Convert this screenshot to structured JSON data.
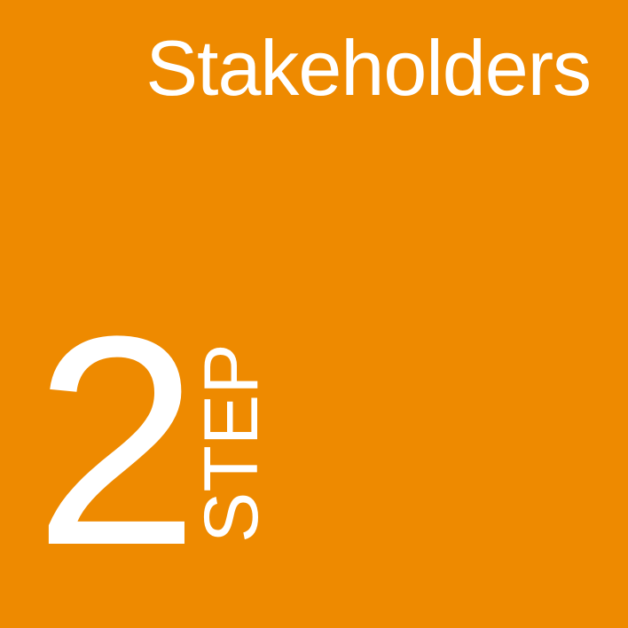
{
  "colors": {
    "background": "#ee8a00",
    "text": "#ffffff"
  },
  "tile": {
    "title": "Stakeholders",
    "step_number": "2",
    "step_word": "STEP"
  }
}
